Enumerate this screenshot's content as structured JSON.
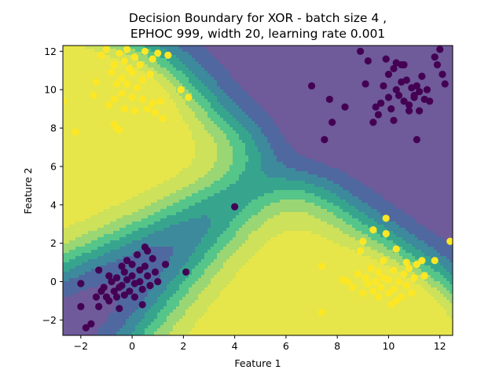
{
  "chart_data": {
    "type": "scatter",
    "title_line1": "Decision Boundary for XOR - batch size 4 ,",
    "title_line2": "EPHOC 999, width 20, learning rate 0.001",
    "xlabel": "Feature 1",
    "ylabel": "Feature 2",
    "xlim": [
      -2.7,
      12.5
    ],
    "ylim": [
      -2.8,
      12.3
    ],
    "x_ticks": [
      -2,
      0,
      2,
      4,
      6,
      8,
      10,
      12
    ],
    "y_ticks": [
      -2,
      0,
      2,
      4,
      6,
      8,
      10,
      12
    ],
    "x_tick_labels": [
      "−2",
      "0",
      "2",
      "4",
      "6",
      "8",
      "10",
      "12"
    ],
    "y_tick_labels": [
      "−2",
      "0",
      "2",
      "4",
      "6",
      "8",
      "10",
      "12"
    ],
    "background": "filled contour of predicted class probability (viridis colormap)",
    "colors": {
      "class0": "#440154",
      "class1": "#fde725",
      "contour_levels": [
        "#6f5a9a",
        "#4f68a0",
        "#3c8a9c",
        "#37a58e",
        "#56c58a",
        "#9ad674",
        "#cde15a",
        "#e6e64a"
      ]
    },
    "series": [
      {
        "points": [
          [
            -2.0,
            -0.1
          ],
          [
            -2.0,
            -1.3
          ],
          [
            -1.8,
            -2.4
          ],
          [
            -1.6,
            -2.2
          ],
          [
            -1.4,
            -0.8
          ],
          [
            -1.3,
            -1.3
          ],
          [
            -1.3,
            0.6
          ],
          [
            -1.2,
            -0.5
          ],
          [
            -1.1,
            -0.3
          ],
          [
            -1.0,
            -0.8
          ],
          [
            -0.9,
            0.3
          ],
          [
            -0.9,
            -1.0
          ],
          [
            -0.8,
            0.0
          ],
          [
            -0.7,
            -0.5
          ],
          [
            -0.6,
            0.2
          ],
          [
            -0.6,
            -0.8
          ],
          [
            -0.5,
            -0.3
          ],
          [
            -0.5,
            -1.4
          ],
          [
            -0.4,
            0.8
          ],
          [
            -0.4,
            -0.2
          ],
          [
            -0.3,
            0.5
          ],
          [
            -0.3,
            -0.7
          ],
          [
            -0.2,
            1.1
          ],
          [
            -0.2,
            0.1
          ],
          [
            -0.1,
            -0.5
          ],
          [
            0.0,
            0.9
          ],
          [
            0.0,
            0.3
          ],
          [
            0.1,
            -0.1
          ],
          [
            0.1,
            -0.8
          ],
          [
            0.2,
            1.4
          ],
          [
            0.3,
            0.6
          ],
          [
            0.3,
            0.0
          ],
          [
            0.4,
            -0.4
          ],
          [
            0.5,
            1.8
          ],
          [
            0.5,
            0.8
          ],
          [
            0.6,
            0.3
          ],
          [
            0.7,
            -0.2
          ],
          [
            0.8,
            1.2
          ],
          [
            0.9,
            0.5
          ],
          [
            1.0,
            0.0
          ],
          [
            0.4,
            -1.2
          ],
          [
            0.6,
            1.6
          ],
          [
            1.3,
            0.9
          ],
          [
            2.1,
            0.5
          ],
          [
            4.0,
            3.9
          ],
          [
            7.0,
            10.2
          ],
          [
            7.5,
            7.4
          ],
          [
            7.7,
            9.5
          ],
          [
            7.8,
            8.3
          ],
          [
            8.3,
            9.1
          ],
          [
            8.9,
            12.0
          ],
          [
            9.1,
            10.3
          ],
          [
            9.2,
            11.5
          ],
          [
            9.4,
            8.3
          ],
          [
            9.5,
            9.1
          ],
          [
            9.6,
            8.7
          ],
          [
            9.7,
            9.3
          ],
          [
            9.8,
            10.2
          ],
          [
            9.9,
            11.6
          ],
          [
            10.0,
            9.6
          ],
          [
            10.0,
            10.8
          ],
          [
            10.1,
            9.0
          ],
          [
            10.2,
            11.1
          ],
          [
            10.2,
            8.4
          ],
          [
            10.3,
            10.0
          ],
          [
            10.3,
            11.4
          ],
          [
            10.4,
            9.7
          ],
          [
            10.5,
            11.3
          ],
          [
            10.5,
            10.4
          ],
          [
            10.6,
            9.4
          ],
          [
            10.7,
            10.5
          ],
          [
            10.8,
            9.2
          ],
          [
            10.8,
            8.9
          ],
          [
            10.9,
            10.1
          ],
          [
            11.0,
            9.6
          ],
          [
            11.1,
            7.4
          ],
          [
            11.1,
            10.2
          ],
          [
            11.2,
            8.9
          ],
          [
            11.2,
            9.9
          ],
          [
            11.3,
            10.7
          ],
          [
            11.4,
            9.5
          ],
          [
            11.5,
            10.0
          ],
          [
            11.6,
            9.4
          ],
          [
            11.8,
            11.7
          ],
          [
            11.9,
            11.3
          ],
          [
            12.0,
            12.1
          ],
          [
            12.1,
            10.8
          ],
          [
            12.2,
            10.3
          ],
          [
            10.6,
            11.3
          ],
          [
            11.0,
            9.7
          ]
        ]
      },
      {
        "points": [
          [
            -2.7,
            9.4
          ],
          [
            -2.2,
            7.8
          ],
          [
            -1.5,
            9.7
          ],
          [
            -1.4,
            10.4
          ],
          [
            -1.2,
            11.8
          ],
          [
            -1.0,
            12.1
          ],
          [
            -0.9,
            9.2
          ],
          [
            -0.8,
            10.9
          ],
          [
            -0.7,
            9.5
          ],
          [
            -0.7,
            11.3
          ],
          [
            -0.6,
            10.3
          ],
          [
            -0.6,
            8.0
          ],
          [
            -0.5,
            11.9
          ],
          [
            -0.5,
            7.9
          ],
          [
            -0.4,
            9.8
          ],
          [
            -0.4,
            10.6
          ],
          [
            -0.3,
            11.5
          ],
          [
            -0.3,
            9.0
          ],
          [
            -0.2,
            12.1
          ],
          [
            -0.2,
            10.3
          ],
          [
            -0.1,
            11.1
          ],
          [
            0.0,
            9.6
          ],
          [
            0.0,
            10.9
          ],
          [
            0.1,
            11.7
          ],
          [
            0.1,
            8.9
          ],
          [
            0.2,
            10.1
          ],
          [
            0.3,
            11.3
          ],
          [
            0.4,
            9.5
          ],
          [
            0.4,
            10.5
          ],
          [
            0.5,
            12.0
          ],
          [
            0.6,
            9.0
          ],
          [
            0.7,
            10.8
          ],
          [
            0.8,
            9.3
          ],
          [
            0.9,
            8.8
          ],
          [
            1.0,
            11.9
          ],
          [
            1.1,
            9.4
          ],
          [
            1.2,
            8.5
          ],
          [
            1.4,
            11.8
          ],
          [
            1.9,
            10.0
          ],
          [
            2.2,
            9.6
          ],
          [
            -0.7,
            8.2
          ],
          [
            0.8,
            11.6
          ],
          [
            7.4,
            0.8
          ],
          [
            7.4,
            -1.6
          ],
          [
            8.2,
            0.1
          ],
          [
            8.4,
            0.0
          ],
          [
            8.6,
            -0.3
          ],
          [
            8.8,
            0.4
          ],
          [
            9.0,
            2.1
          ],
          [
            9.0,
            -0.6
          ],
          [
            9.1,
            0.2
          ],
          [
            9.2,
            -0.1
          ],
          [
            9.3,
            0.7
          ],
          [
            9.4,
            2.7
          ],
          [
            9.4,
            -0.5
          ],
          [
            9.5,
            0.0
          ],
          [
            9.6,
            -0.8
          ],
          [
            9.6,
            0.5
          ],
          [
            9.7,
            -0.3
          ],
          [
            9.8,
            1.1
          ],
          [
            9.8,
            0.2
          ],
          [
            9.9,
            3.3
          ],
          [
            9.9,
            2.5
          ],
          [
            10.0,
            -0.6
          ],
          [
            10.0,
            0.1
          ],
          [
            10.1,
            -1.2
          ],
          [
            10.2,
            0.6
          ],
          [
            10.2,
            -0.4
          ],
          [
            10.3,
            1.7
          ],
          [
            10.4,
            0.0
          ],
          [
            10.5,
            -0.8
          ],
          [
            10.6,
            0.4
          ],
          [
            10.7,
            1.0
          ],
          [
            10.7,
            -0.2
          ],
          [
            10.8,
            0.7
          ],
          [
            10.9,
            -0.6
          ],
          [
            11.0,
            0.2
          ],
          [
            11.1,
            0.9
          ],
          [
            11.3,
            1.1
          ],
          [
            11.4,
            0.3
          ],
          [
            11.8,
            1.1
          ],
          [
            12.4,
            2.1
          ],
          [
            10.3,
            -1.0
          ],
          [
            8.9,
            1.6
          ]
        ]
      }
    ]
  }
}
